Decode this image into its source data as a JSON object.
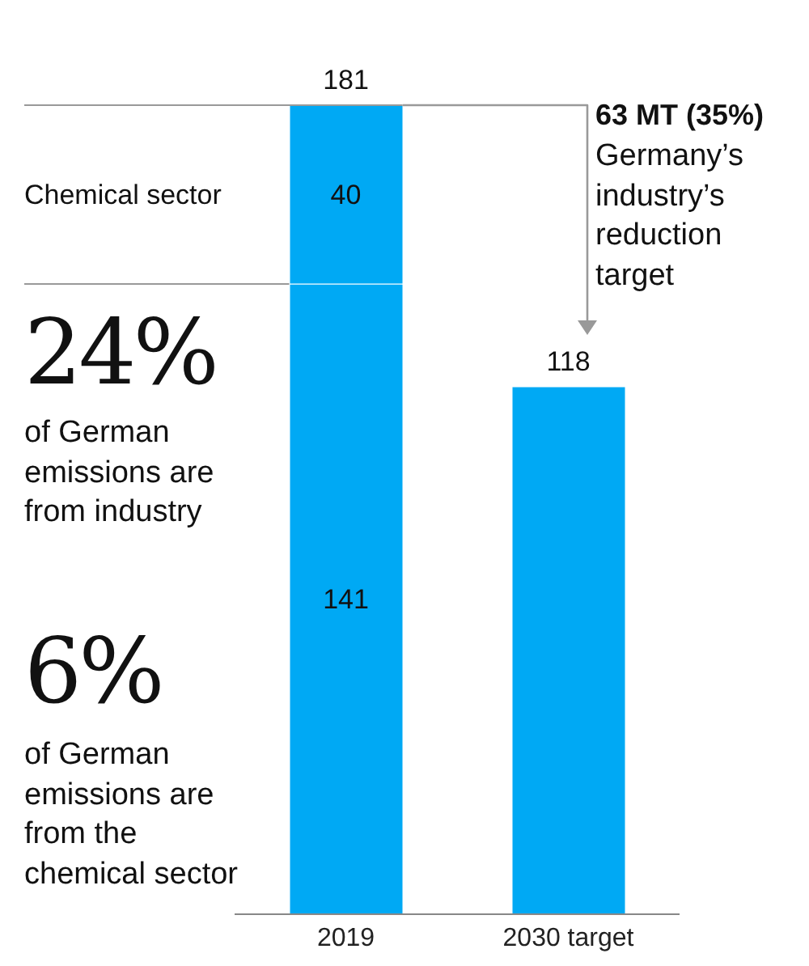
{
  "chart_data": {
    "type": "bar",
    "stacked": true,
    "categories": [
      "2019",
      "2030 target"
    ],
    "series": [
      {
        "color": "#00a9f4",
        "values": [
          141,
          118
        ]
      },
      {
        "name": "Chemical sector",
        "color": "#00a9f4",
        "values": [
          40,
          null
        ]
      }
    ],
    "data_labels": true,
    "totals": [
      "181",
      null
    ],
    "ref_lines": [
      {
        "axis": "y",
        "value": 181,
        "color": "#999999"
      },
      {
        "axis": "y",
        "value": 141,
        "color": "#999999"
      }
    ],
    "annotations": [
      "24%",
      "of German emissions are from industry",
      "6%",
      "of German emissions are from the chemical sector",
      "63 MT (35%)",
      "Germany’s industry’s reduction target"
    ]
  }
}
